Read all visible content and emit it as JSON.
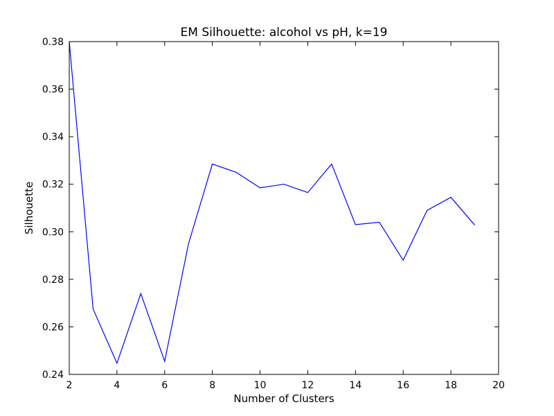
{
  "chart_data": {
    "type": "line",
    "title": "EM Silhouette: alcohol vs pH, k=19",
    "xlabel": "Number of Clusters",
    "ylabel": "Silhouette",
    "xlim": [
      2,
      20
    ],
    "ylim": [
      0.24,
      0.38
    ],
    "xticks": [
      2,
      4,
      6,
      8,
      10,
      12,
      14,
      16,
      18,
      20
    ],
    "xtick_labels": [
      "2",
      "4",
      "6",
      "8",
      "10",
      "12",
      "14",
      "16",
      "18",
      "20"
    ],
    "yticks": [
      0.24,
      0.26,
      0.28,
      0.3,
      0.32,
      0.34,
      0.36,
      0.38
    ],
    "ytick_labels": [
      "0.24",
      "0.26",
      "0.28",
      "0.30",
      "0.32",
      "0.34",
      "0.36",
      "0.38"
    ],
    "grid": false,
    "series": [
      {
        "color": "#0000ff",
        "x": [
          2,
          3,
          4,
          5,
          6,
          7,
          8,
          9,
          10,
          11,
          12,
          13,
          14,
          15,
          16,
          17,
          18,
          19
        ],
        "y": [
          0.38,
          0.2675,
          0.2447,
          0.274,
          0.2455,
          0.295,
          0.3285,
          0.325,
          0.3185,
          0.32,
          0.3165,
          0.3285,
          0.303,
          0.304,
          0.288,
          0.309,
          0.3145,
          0.3028
        ]
      }
    ]
  }
}
